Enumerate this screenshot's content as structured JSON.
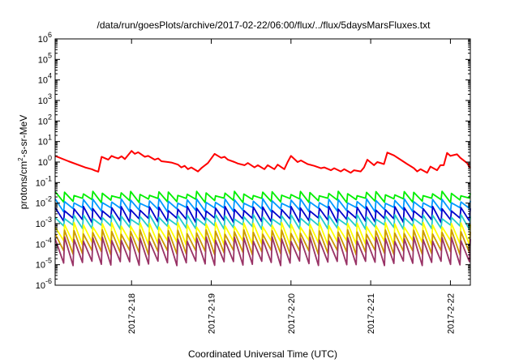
{
  "chart_data": {
    "type": "line",
    "title": "/data/run/goesPlots/archive/2017-02-22/06:00/flux/../flux/5daysMarsFluxes.txt",
    "xlabel": "Coordinated Universal Time (UTC)",
    "ylabel": {
      "prefix": "protons/cm",
      "sup": "2",
      "suffix": "-s-sr-MeV"
    },
    "yscale": "log",
    "ylim": [
      1e-06,
      1000000.0
    ],
    "y_ticks": [
      {
        "base": "10",
        "exp": "-6",
        "value": 1e-06
      },
      {
        "base": "10",
        "exp": "-5",
        "value": 1e-05
      },
      {
        "base": "10",
        "exp": "-4",
        "value": 0.0001
      },
      {
        "base": "10",
        "exp": "-3",
        "value": 0.001
      },
      {
        "base": "10",
        "exp": "-2",
        "value": 0.01
      },
      {
        "base": "10",
        "exp": "-1",
        "value": 0.1
      },
      {
        "base": "10",
        "exp": "0",
        "value": 1
      },
      {
        "base": "10",
        "exp": "1",
        "value": 10
      },
      {
        "base": "10",
        "exp": "2",
        "value": 100
      },
      {
        "base": "10",
        "exp": "3",
        "value": 1000
      },
      {
        "base": "10",
        "exp": "4",
        "value": 10000
      },
      {
        "base": "10",
        "exp": "5",
        "value": 100000
      },
      {
        "base": "10",
        "exp": "6",
        "value": 1000000
      }
    ],
    "xlim": [
      "2017-02-17T01:00",
      "2017-02-22T06:00"
    ],
    "x_ticks": [
      {
        "label": "2017-2-18",
        "value": "2017-02-18T00:00"
      },
      {
        "label": "2017-2-19",
        "value": "2017-02-19T00:00"
      },
      {
        "label": "2017-2-20",
        "value": "2017-02-20T00:00"
      },
      {
        "label": "2017-2-21",
        "value": "2017-02-21T00:00"
      },
      {
        "label": "2017-2-22",
        "value": "2017-02-22T00:00"
      }
    ],
    "grid": false,
    "legend": "none",
    "series": [
      {
        "color": "#ff0000",
        "x": [
          "2017-02-17T01:00",
          "2017-02-17T05:00",
          "2017-02-17T10:00",
          "2017-02-17T12:00",
          "2017-02-17T13:00",
          "2017-02-17T14:00",
          "2017-02-17T15:00",
          "2017-02-17T17:00",
          "2017-02-17T18:00",
          "2017-02-17T19:00",
          "2017-02-17T20:00",
          "2017-02-17T21:00",
          "2017-02-17T22:00",
          "2017-02-18T00:00",
          "2017-02-18T01:00",
          "2017-02-18T02:00",
          "2017-02-18T04:00",
          "2017-02-18T05:00",
          "2017-02-18T07:00",
          "2017-02-18T08:00",
          "2017-02-18T09:00",
          "2017-02-18T11:00",
          "2017-02-18T12:00",
          "2017-02-18T14:00",
          "2017-02-18T15:00",
          "2017-02-18T16:00",
          "2017-02-18T17:00",
          "2017-02-18T18:00",
          "2017-02-18T20:00",
          "2017-02-18T21:00",
          "2017-02-18T23:00",
          "2017-02-19T01:00",
          "2017-02-19T03:00",
          "2017-02-19T04:00",
          "2017-02-19T05:00",
          "2017-02-19T07:00",
          "2017-02-19T08:00",
          "2017-02-19T10:00",
          "2017-02-19T11:00",
          "2017-02-19T13:00",
          "2017-02-19T14:00",
          "2017-02-19T16:00",
          "2017-02-19T17:00",
          "2017-02-19T19:00",
          "2017-02-19T20:00",
          "2017-02-19T22:00",
          "2017-02-19T23:00",
          "2017-02-20T00:00",
          "2017-02-20T02:00",
          "2017-02-20T03:00",
          "2017-02-20T05:00",
          "2017-02-20T07:00",
          "2017-02-20T09:00",
          "2017-02-20T10:00",
          "2017-02-20T12:00",
          "2017-02-20T13:00",
          "2017-02-20T15:00",
          "2017-02-20T16:00",
          "2017-02-20T18:00",
          "2017-02-20T19:00",
          "2017-02-20T21:00",
          "2017-02-20T22:00",
          "2017-02-20T23:00",
          "2017-02-21T01:00",
          "2017-02-21T02:00",
          "2017-02-21T04:00",
          "2017-02-21T05:00",
          "2017-02-21T07:00",
          "2017-02-21T09:00",
          "2017-02-21T11:00",
          "2017-02-21T13:00",
          "2017-02-21T14:00",
          "2017-02-21T15:00",
          "2017-02-21T17:00",
          "2017-02-21T18:00",
          "2017-02-21T20:00",
          "2017-02-21T21:00",
          "2017-02-21T22:00",
          "2017-02-21T23:00",
          "2017-02-22T00:00",
          "2017-02-22T02:00",
          "2017-02-22T03:00",
          "2017-02-22T05:00",
          "2017-02-22T06:00"
        ],
        "values": [
          2.0,
          1.1,
          0.55,
          0.45,
          0.38,
          0.34,
          1.8,
          1.3,
          2.0,
          1.7,
          1.5,
          1.9,
          1.4,
          3.5,
          2.5,
          3.0,
          1.8,
          2.0,
          1.3,
          1.5,
          1.1,
          1.0,
          0.95,
          0.75,
          0.55,
          0.65,
          0.45,
          0.55,
          0.35,
          0.5,
          0.9,
          2.5,
          1.6,
          1.8,
          1.3,
          1.0,
          0.85,
          0.7,
          0.9,
          0.55,
          0.7,
          0.45,
          0.7,
          0.45,
          0.75,
          0.45,
          1.0,
          2.0,
          1.0,
          1.2,
          0.8,
          0.65,
          0.5,
          0.55,
          0.4,
          0.5,
          0.35,
          0.45,
          0.3,
          0.4,
          0.35,
          0.55,
          1.3,
          0.7,
          1.0,
          0.8,
          2.9,
          2.1,
          1.3,
          0.8,
          0.5,
          0.35,
          0.45,
          0.3,
          0.6,
          0.4,
          0.7,
          0.7,
          2.8,
          2.0,
          2.4,
          1.6,
          0.9,
          0.5
        ]
      },
      {
        "color": "#00ee00",
        "peak": 0.03,
        "trough": 0.014,
        "teeth": 44
      },
      {
        "color": "#0099ff",
        "peak": 0.013,
        "trough": 0.005,
        "teeth": 44
      },
      {
        "color": "#0000cc",
        "peak": 0.0055,
        "trough": 0.0015,
        "teeth": 44
      },
      {
        "color": "#22cccc",
        "peak": 0.0022,
        "trough": 0.0007,
        "teeth": 44
      },
      {
        "color": "#ffff00",
        "peak": 0.0009,
        "trough": 0.00012,
        "teeth": 44
      },
      {
        "color": "#cc9900",
        "peak": 0.0004,
        "trough": 4e-05,
        "teeth": 44
      },
      {
        "color": "#993366",
        "peak": 0.00018,
        "trough": 1.2e-05,
        "teeth": 44
      }
    ]
  }
}
